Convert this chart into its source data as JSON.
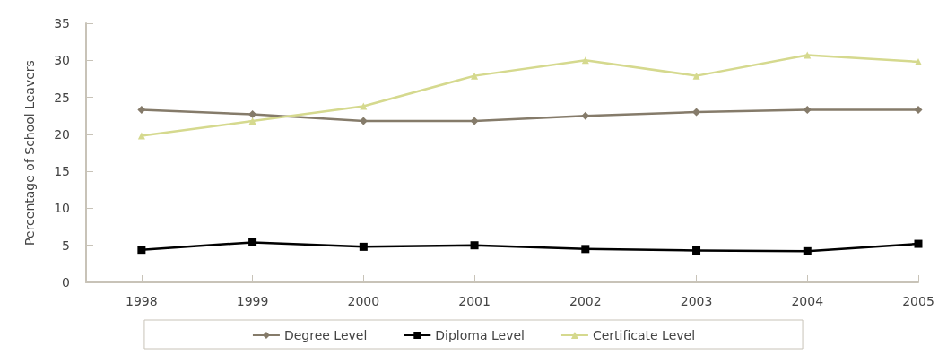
{
  "chart_data": {
    "type": "line",
    "ylabel": "Percentage of School Leavers",
    "x": [
      1998,
      1999,
      2000,
      2001,
      2002,
      2003,
      2004,
      2005
    ],
    "xlim": [
      1997.5,
      2005
    ],
    "xticks": [
      1998,
      1999,
      2000,
      2001,
      2002,
      2003,
      2004,
      2005
    ],
    "ylim": [
      0,
      35
    ],
    "yticks": [
      0,
      5,
      10,
      15,
      20,
      25,
      30,
      35
    ],
    "grid": false,
    "legend": "bottom",
    "series": [
      {
        "name": "Degree Level",
        "color": "#857b6a",
        "marker": "diamond",
        "values": [
          23.3,
          22.7,
          21.8,
          21.8,
          22.5,
          23.0,
          23.3,
          23.3
        ]
      },
      {
        "name": "Diploma Level",
        "color": "#000000",
        "marker": "square",
        "values": [
          4.4,
          5.4,
          4.8,
          5.0,
          4.5,
          4.3,
          4.2,
          5.2
        ]
      },
      {
        "name": "Certificate Level",
        "color": "#d5d98e",
        "marker": "triangle",
        "values": [
          19.8,
          21.8,
          23.8,
          27.9,
          30.0,
          27.9,
          30.7,
          29.8
        ]
      }
    ]
  }
}
